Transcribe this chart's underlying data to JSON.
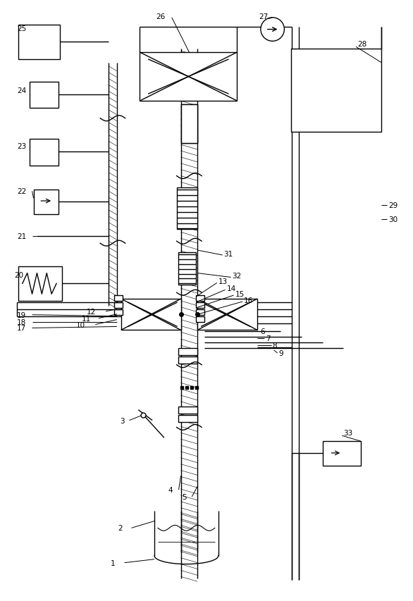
{
  "bg_color": "#ffffff",
  "lc": "#000000",
  "lw": 1.0
}
